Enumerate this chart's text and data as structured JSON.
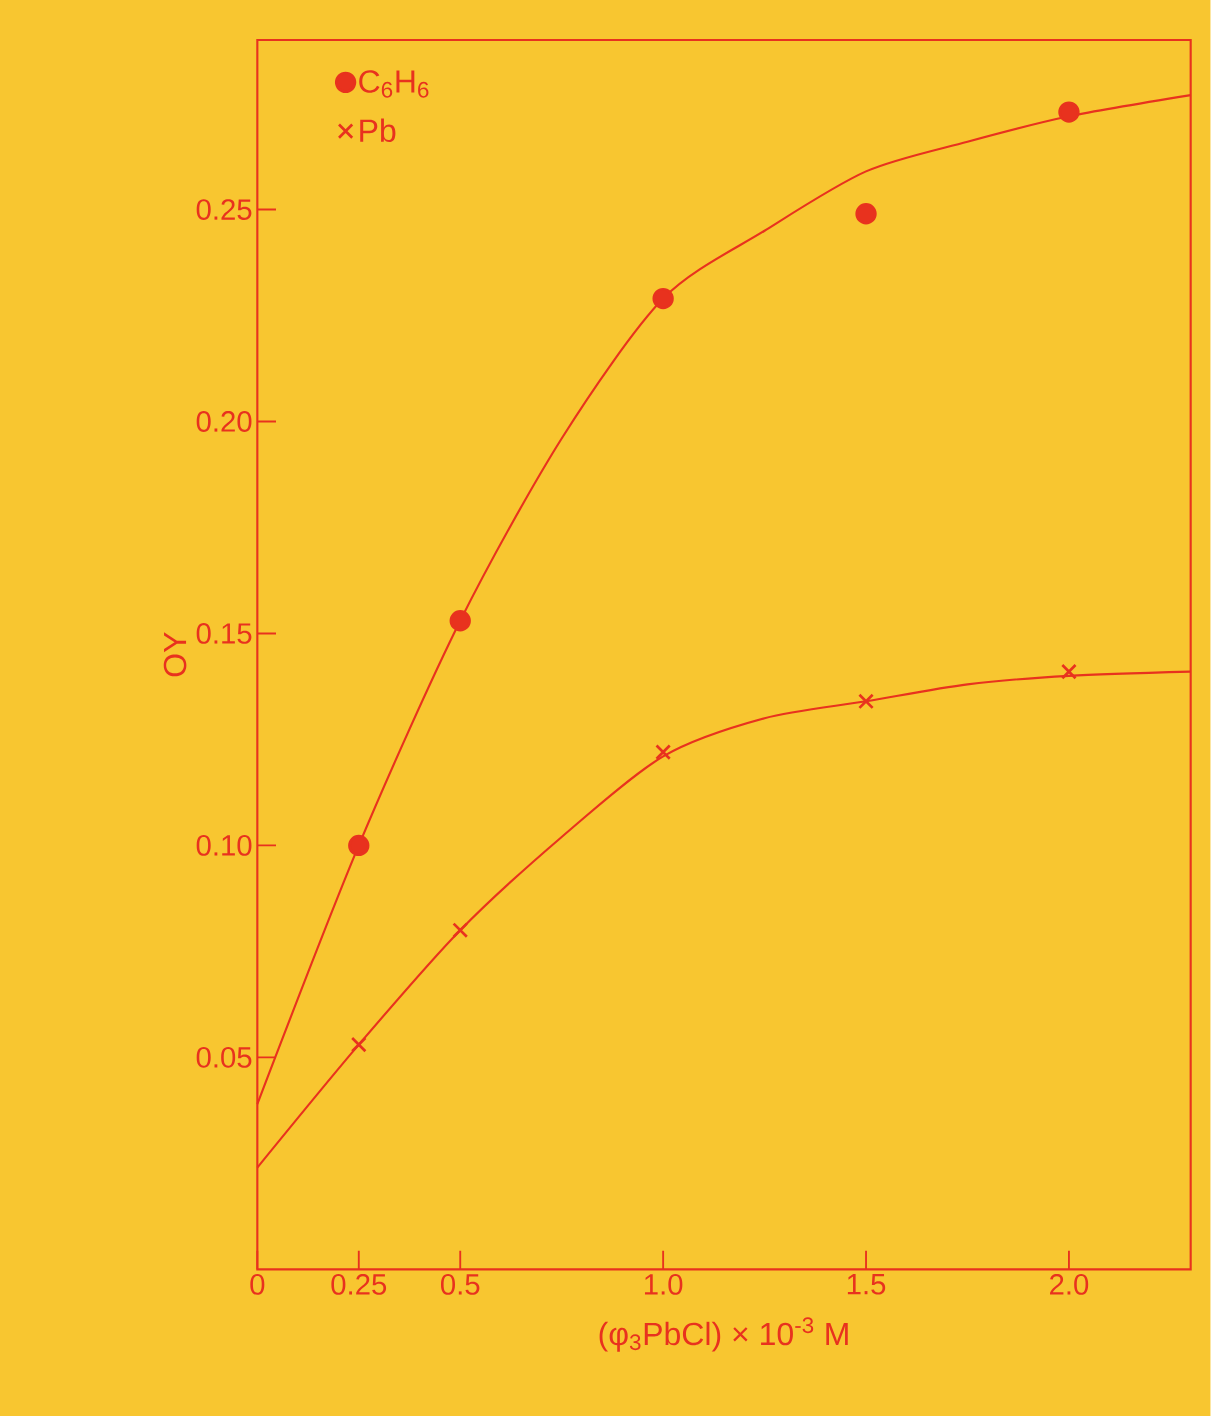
{
  "chart_data": {
    "type": "scatter",
    "xlabel": "(φ$_{3}$PbCl) × 10$^{-3}$ M",
    "ylabel": "OY",
    "xlim": [
      0,
      2.3
    ],
    "ylim": [
      0,
      0.29
    ],
    "xticks": [
      0,
      0.25,
      0.5,
      {
        "value": 1.0,
        "label": "1.0"
      },
      1.5,
      {
        "value": 2.0,
        "label": "2.0"
      }
    ],
    "yticks": [
      0.05,
      {
        "value": 0.1,
        "label": "0.10"
      },
      0.15,
      {
        "value": 0.2,
        "label": "0.20"
      },
      0.25
    ],
    "legend": "top left",
    "grid": false,
    "series": [
      {
        "name": "C$_{6}$H$_{6}$",
        "marker": "circle",
        "color": "#e8321e",
        "x": [
          0.25,
          0.5,
          1.0,
          1.5,
          2.0
        ],
        "values": [
          0.1,
          0.153,
          0.229,
          0.249,
          0.273
        ]
      },
      {
        "name": "Pb",
        "marker": "cross",
        "color": "#e8321e",
        "x": [
          0.25,
          0.5,
          1.0,
          1.5,
          2.0
        ],
        "values": [
          0.053,
          0.08,
          0.122,
          0.134,
          0.141
        ]
      },
      {
        "type": "line",
        "marker": "none",
        "color": "#e8321e",
        "x": [
          0,
          0.25,
          0.5,
          0.75,
          1.0,
          1.25,
          1.5,
          1.75,
          2.0,
          2.3
        ],
        "values": [
          0.039,
          0.1,
          0.153,
          0.196,
          0.229,
          0.245,
          0.259,
          0.266,
          0.272,
          0.277
        ]
      },
      {
        "type": "line",
        "marker": "none",
        "color": "#e8321e",
        "x": [
          0,
          0.25,
          0.5,
          0.75,
          1.0,
          1.25,
          1.5,
          1.75,
          2.0,
          2.3
        ],
        "values": [
          0.024,
          0.053,
          0.08,
          0.102,
          0.121,
          0.13,
          0.134,
          0.138,
          0.14,
          0.141
        ]
      }
    ]
  }
}
